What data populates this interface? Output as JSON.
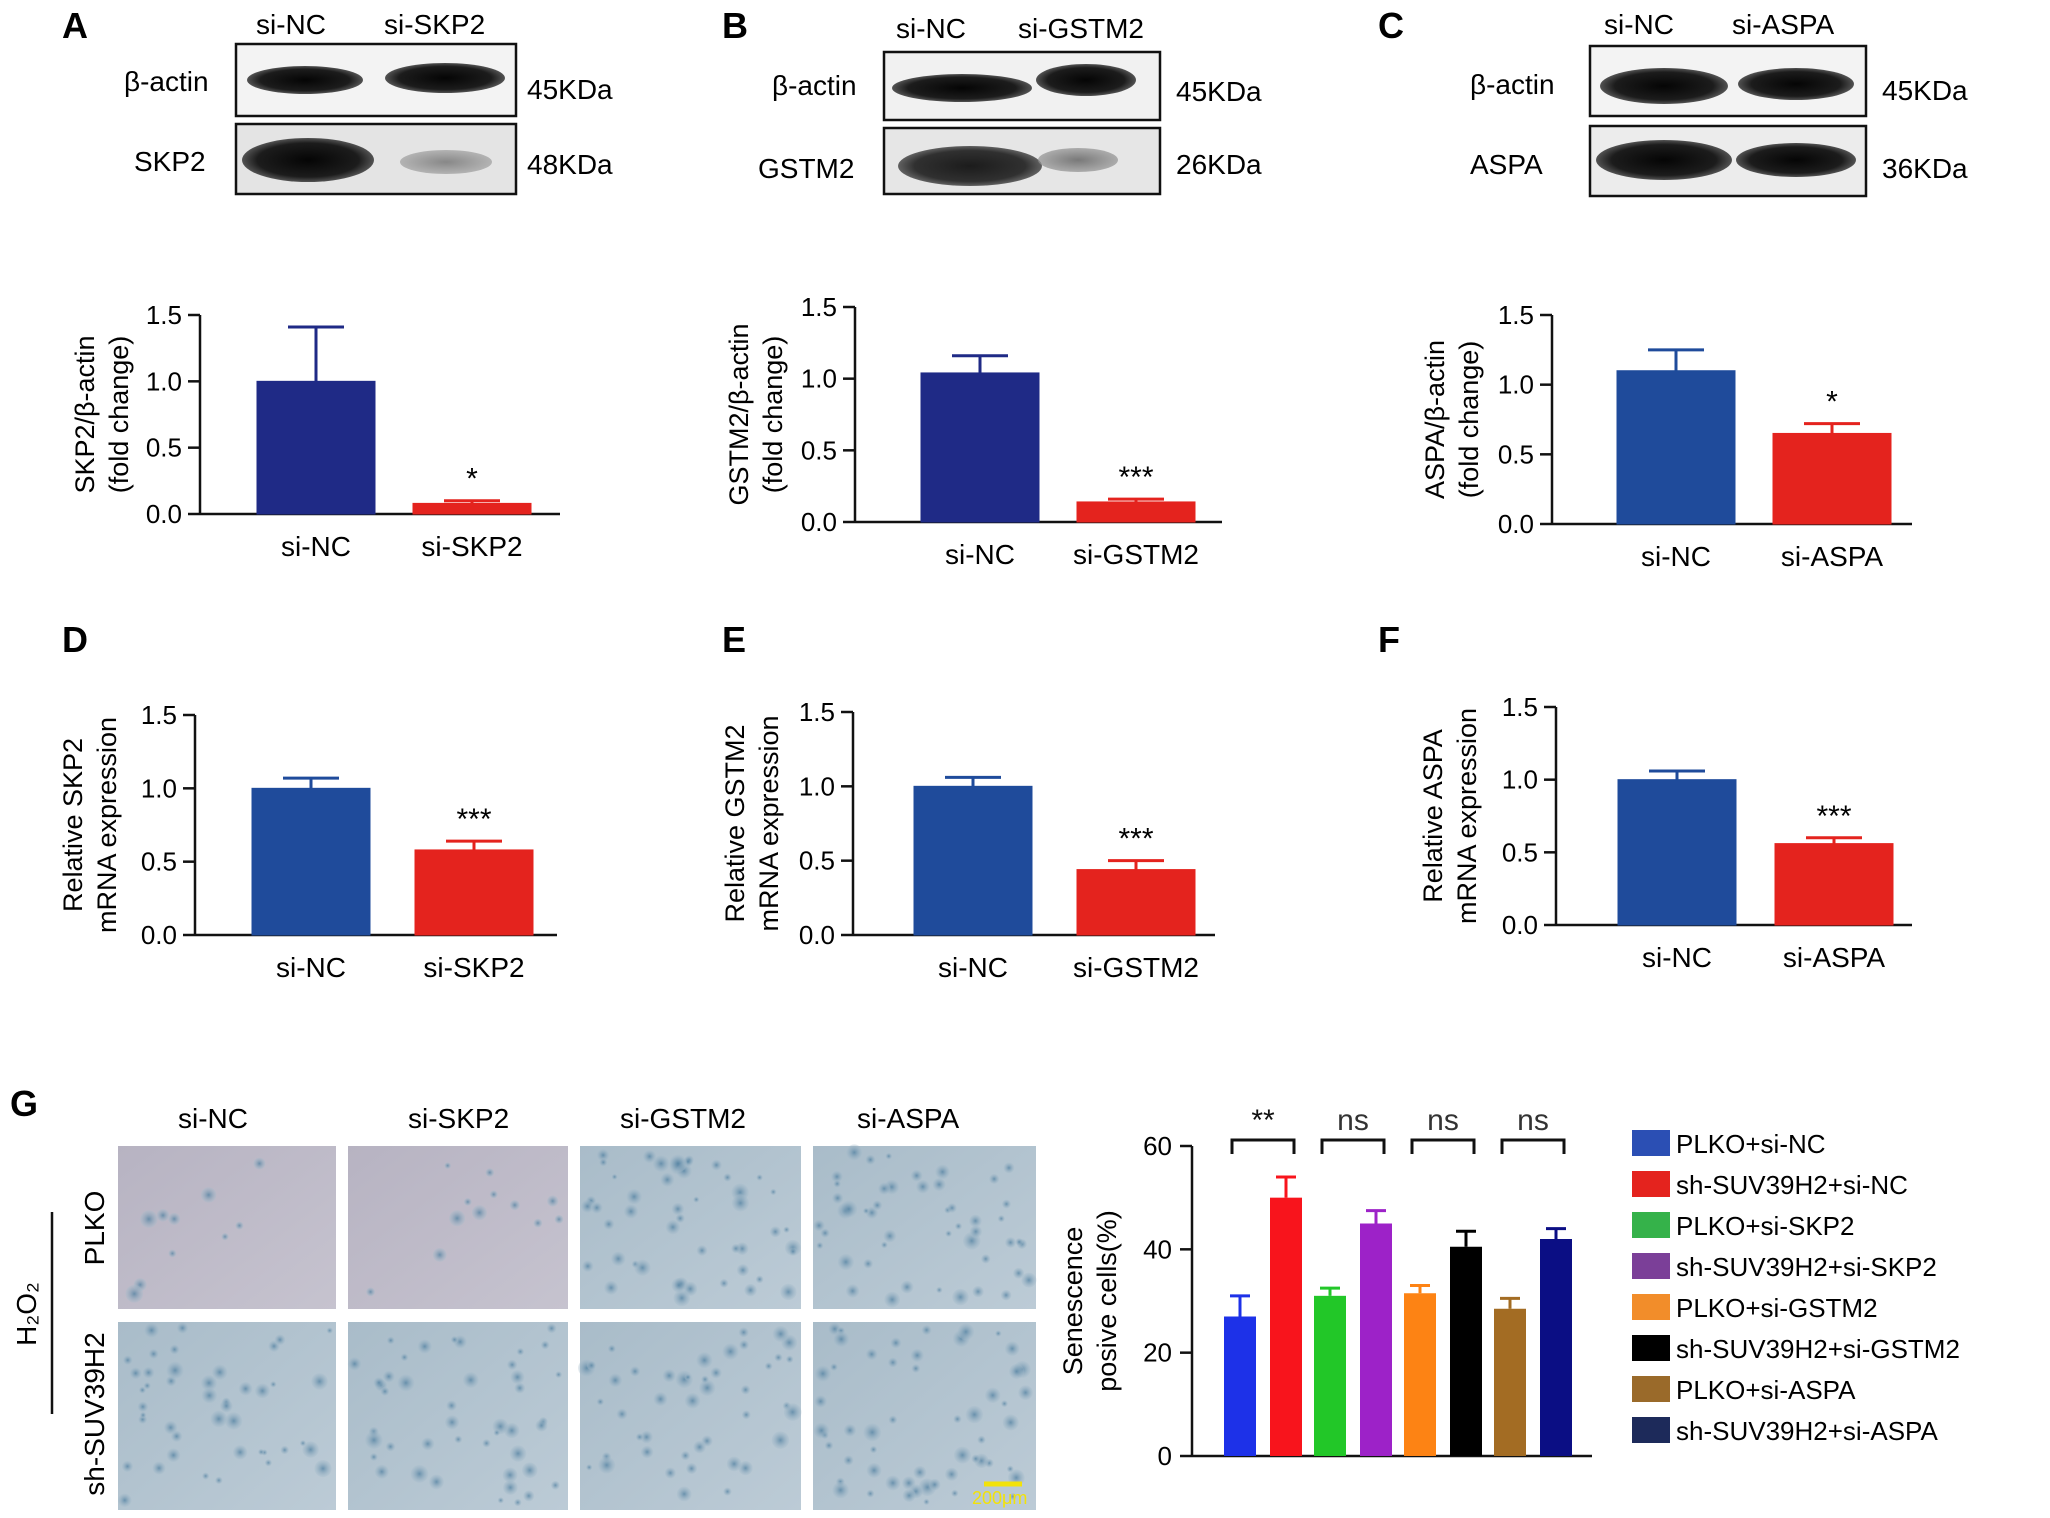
{
  "panels": {
    "a": {
      "letter": "A",
      "blot": {
        "lanes": [
          "si-NC",
          "si-SKP2"
        ],
        "rows": [
          {
            "protein": "β-actin",
            "size": "45KDa"
          },
          {
            "protein": "SKP2",
            "size": "48KDa"
          }
        ]
      }
    },
    "b": {
      "letter": "B",
      "blot": {
        "lanes": [
          "si-NC",
          "si-GSTM2"
        ],
        "rows": [
          {
            "protein": "β-actin",
            "size": "45KDa"
          },
          {
            "protein": "GSTM2",
            "size": "26KDa"
          }
        ]
      }
    },
    "c": {
      "letter": "C",
      "blot": {
        "lanes": [
          "si-NC",
          "si-ASPA"
        ],
        "rows": [
          {
            "protein": "β-actin",
            "size": "45KDa"
          },
          {
            "protein": "ASPA",
            "size": "36KDa"
          }
        ]
      }
    },
    "d": {
      "letter": "D"
    },
    "e": {
      "letter": "E"
    },
    "f": {
      "letter": "F"
    },
    "g": {
      "letter": "G",
      "columns": [
        "si-NC",
        "si-SKP2",
        "si-GSTM2",
        "si-ASPA"
      ],
      "rows": [
        "PLKO",
        "sh-SUV39H2"
      ],
      "treatment": "H₂O₂",
      "scale_bar": "200μm"
    }
  },
  "chart_data": [
    {
      "id": "a",
      "type": "bar",
      "categories": [
        "si-NC",
        "si-SKP2"
      ],
      "values": [
        1.0,
        0.08
      ],
      "errors": [
        0.41,
        0.02
      ],
      "significance": [
        "",
        "*"
      ],
      "ylabel": [
        "SKP2/β-actin",
        "(fold change)"
      ],
      "ylim": [
        0,
        1.5
      ],
      "yticks": [
        "0.0",
        "0.5",
        "1.0",
        "1.5"
      ],
      "colors": [
        "#1f2a86",
        "#e4231e"
      ]
    },
    {
      "id": "b",
      "type": "bar",
      "categories": [
        "si-NC",
        "si-GSTM2"
      ],
      "values": [
        1.04,
        0.14
      ],
      "errors": [
        0.12,
        0.02
      ],
      "significance": [
        "",
        "***"
      ],
      "ylabel": [
        "GSTM2/β-actin",
        "(fold change)"
      ],
      "ylim": [
        0,
        1.5
      ],
      "yticks": [
        "0.0",
        "0.5",
        "1.0",
        "1.5"
      ],
      "colors": [
        "#1f2a86",
        "#e4231e"
      ]
    },
    {
      "id": "c",
      "type": "bar",
      "categories": [
        "si-NC",
        "si-ASPA"
      ],
      "values": [
        1.1,
        0.65
      ],
      "errors": [
        0.15,
        0.07
      ],
      "significance": [
        "",
        "*"
      ],
      "ylabel": [
        "ASPA/β-actin",
        "(fold change)"
      ],
      "ylim": [
        0,
        1.5
      ],
      "yticks": [
        "0.0",
        "0.5",
        "1.0",
        "1.5"
      ],
      "colors": [
        "#1f4b9b",
        "#e4231e"
      ]
    },
    {
      "id": "d",
      "type": "bar",
      "categories": [
        "si-NC",
        "si-SKP2"
      ],
      "values": [
        1.0,
        0.58
      ],
      "errors": [
        0.07,
        0.06
      ],
      "significance": [
        "",
        "***"
      ],
      "ylabel": [
        "Relative SKP2",
        "mRNA expression"
      ],
      "ylim": [
        0,
        1.5
      ],
      "yticks": [
        "0.0",
        "0.5",
        "1.0",
        "1.5"
      ],
      "colors": [
        "#1f4b9b",
        "#e4231e"
      ]
    },
    {
      "id": "e",
      "type": "bar",
      "categories": [
        "si-NC",
        "si-GSTM2"
      ],
      "values": [
        1.0,
        0.44
      ],
      "errors": [
        0.06,
        0.06
      ],
      "significance": [
        "",
        "***"
      ],
      "ylabel": [
        "Relative GSTM2",
        "mRNA expression"
      ],
      "ylim": [
        0,
        1.5
      ],
      "yticks": [
        "0.0",
        "0.5",
        "1.0",
        "1.5"
      ],
      "colors": [
        "#1f4b9b",
        "#e4231e"
      ]
    },
    {
      "id": "f",
      "type": "bar",
      "categories": [
        "si-NC",
        "si-ASPA"
      ],
      "values": [
        1.0,
        0.56
      ],
      "errors": [
        0.06,
        0.04
      ],
      "significance": [
        "",
        "***"
      ],
      "ylabel": [
        "Relative ASPA",
        "mRNA expression"
      ],
      "ylim": [
        0,
        1.5
      ],
      "yticks": [
        "0.0",
        "0.5",
        "1.0",
        "1.5"
      ],
      "colors": [
        "#1f4b9b",
        "#e4231e"
      ]
    },
    {
      "id": "g",
      "type": "bar",
      "categories": [
        "PLKO+si-NC",
        "sh-SUV39H2+si-NC",
        "PLKO+si-SKP2",
        "sh-SUV39H2+si-SKP2",
        "PLKO+si-GSTM2",
        "sh-SUV39H2+si-GSTM2",
        "PLKO+si-ASPA",
        "sh-SUV39H2+si-ASPA"
      ],
      "values": [
        27,
        50,
        31,
        45,
        31.5,
        40.5,
        28.5,
        42
      ],
      "errors": [
        4,
        4,
        1.5,
        2.5,
        1.5,
        3,
        2,
        2
      ],
      "colors": [
        "#1d31e8",
        "#f8141c",
        "#22c728",
        "#9d22c8",
        "#fd8314",
        "#000000",
        "#a36c23",
        "#0b0e84"
      ],
      "legend_colors": [
        "#2b4fb4",
        "#e4231e",
        "#35b24a",
        "#7b3f98",
        "#f28d2a",
        "#000000",
        "#9a6a2a",
        "#1d2a5a"
      ],
      "ylabel": [
        "Senescence",
        "posive cells(%)"
      ],
      "ylim": [
        0,
        60
      ],
      "yticks": [
        "0",
        "20",
        "40",
        "60"
      ],
      "comparisons": [
        {
          "pair": [
            0,
            1
          ],
          "label": "**"
        },
        {
          "pair": [
            2,
            3
          ],
          "label": "ns"
        },
        {
          "pair": [
            4,
            5
          ],
          "label": "ns"
        },
        {
          "pair": [
            6,
            7
          ],
          "label": "ns"
        }
      ],
      "legend": "right"
    }
  ]
}
